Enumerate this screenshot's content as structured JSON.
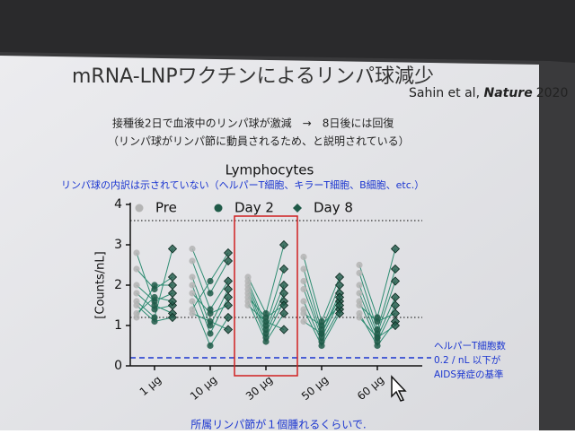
{
  "slide": {
    "title": "mRNA-LNPワクチンによるリンパ球減少",
    "citation_authors": "Sahin et al, ",
    "citation_journal": "Nature",
    "citation_year": "2020",
    "note_1": "接種後2日で血液中のリンパ球が激減　→　8日後には回復",
    "note_2": "（リンパ球がリンパ節に動員されるため、と説明されている）",
    "note_blue": "リンパ球の内訳は示されていない（ヘルパーT細胞、キラーT細胞、B細胞、etc.）",
    "footer": "所属リンパ節が１個腫れるくらいで."
  },
  "chart_data": {
    "type": "paired-dot",
    "title": "Lymphocytes",
    "y_label": "[Counts/nL]",
    "categories": [
      "1 µg",
      "10 µg",
      "30 µg",
      "50 µg",
      "60 µg"
    ],
    "series": [
      {
        "name": "Pre",
        "color": "#b4b4b4",
        "marker": "circle"
      },
      {
        "name": "Day 2",
        "color": "#1f5a48",
        "marker": "circle"
      },
      {
        "name": "Day 8",
        "color": "#1f5a48",
        "marker": "diamond"
      }
    ],
    "line_color": "#2e8c72",
    "values": [
      [
        [
          2.8,
          1.5,
          1.3
        ],
        [
          2.4,
          1.9,
          2.2
        ],
        [
          2.0,
          1.6,
          1.8
        ],
        [
          1.8,
          1.4,
          1.5
        ],
        [
          1.6,
          1.2,
          2.9
        ],
        [
          1.5,
          1.1,
          1.2
        ],
        [
          1.3,
          1.7,
          1.6
        ],
        [
          1.2,
          2.0,
          2.0
        ]
      ],
      [
        [
          2.9,
          1.8,
          2.6
        ],
        [
          2.6,
          1.4,
          2.1
        ],
        [
          2.2,
          1.0,
          1.9
        ],
        [
          2.0,
          0.8,
          1.7
        ],
        [
          1.8,
          1.3,
          1.5
        ],
        [
          1.6,
          0.5,
          1.2
        ],
        [
          1.4,
          2.1,
          2.8
        ],
        [
          1.3,
          1.1,
          0.9
        ]
      ],
      [
        [
          2.2,
          1.3,
          3.0
        ],
        [
          2.1,
          1.0,
          2.4
        ],
        [
          2.0,
          0.9,
          2.0
        ],
        [
          1.9,
          0.8,
          1.8
        ],
        [
          1.8,
          0.7,
          1.6
        ],
        [
          1.7,
          1.2,
          1.5
        ],
        [
          1.6,
          0.6,
          1.3
        ],
        [
          1.5,
          1.1,
          0.9
        ]
      ],
      [
        [
          2.7,
          1.1,
          2.2
        ],
        [
          2.4,
          0.9,
          2.0
        ],
        [
          2.1,
          0.8,
          1.8
        ],
        [
          1.9,
          0.7,
          1.6
        ],
        [
          1.6,
          0.6,
          1.4
        ],
        [
          1.4,
          0.5,
          1.3
        ],
        [
          1.3,
          1.0,
          1.5
        ],
        [
          1.1,
          0.8,
          1.7
        ]
      ],
      [
        [
          2.5,
          1.2,
          2.9
        ],
        [
          2.3,
          0.9,
          2.4
        ],
        [
          2.0,
          0.8,
          2.1
        ],
        [
          1.8,
          0.7,
          1.7
        ],
        [
          1.6,
          0.6,
          1.5
        ],
        [
          1.5,
          1.1,
          1.3
        ],
        [
          1.3,
          0.5,
          1.1
        ],
        [
          1.2,
          0.7,
          1.0
        ]
      ]
    ],
    "ylim": [
      0,
      4
    ],
    "yticks": [
      0,
      1,
      2,
      3,
      4
    ],
    "highlight": "30 µg",
    "highlight_color": "#d02020",
    "reference_lines": [
      {
        "value": 3.6,
        "style": "dotted",
        "color": "#333333"
      },
      {
        "value": 1.2,
        "style": "dotted",
        "color": "#333333"
      },
      {
        "value": 0.2,
        "style": "dashed",
        "color": "#1a35d0"
      }
    ],
    "annotation": [
      "ヘルパーT細胞数",
      "0.2 / nL 以下が",
      "AIDS発症の基準"
    ],
    "annotation_color": "#1a35d0"
  }
}
